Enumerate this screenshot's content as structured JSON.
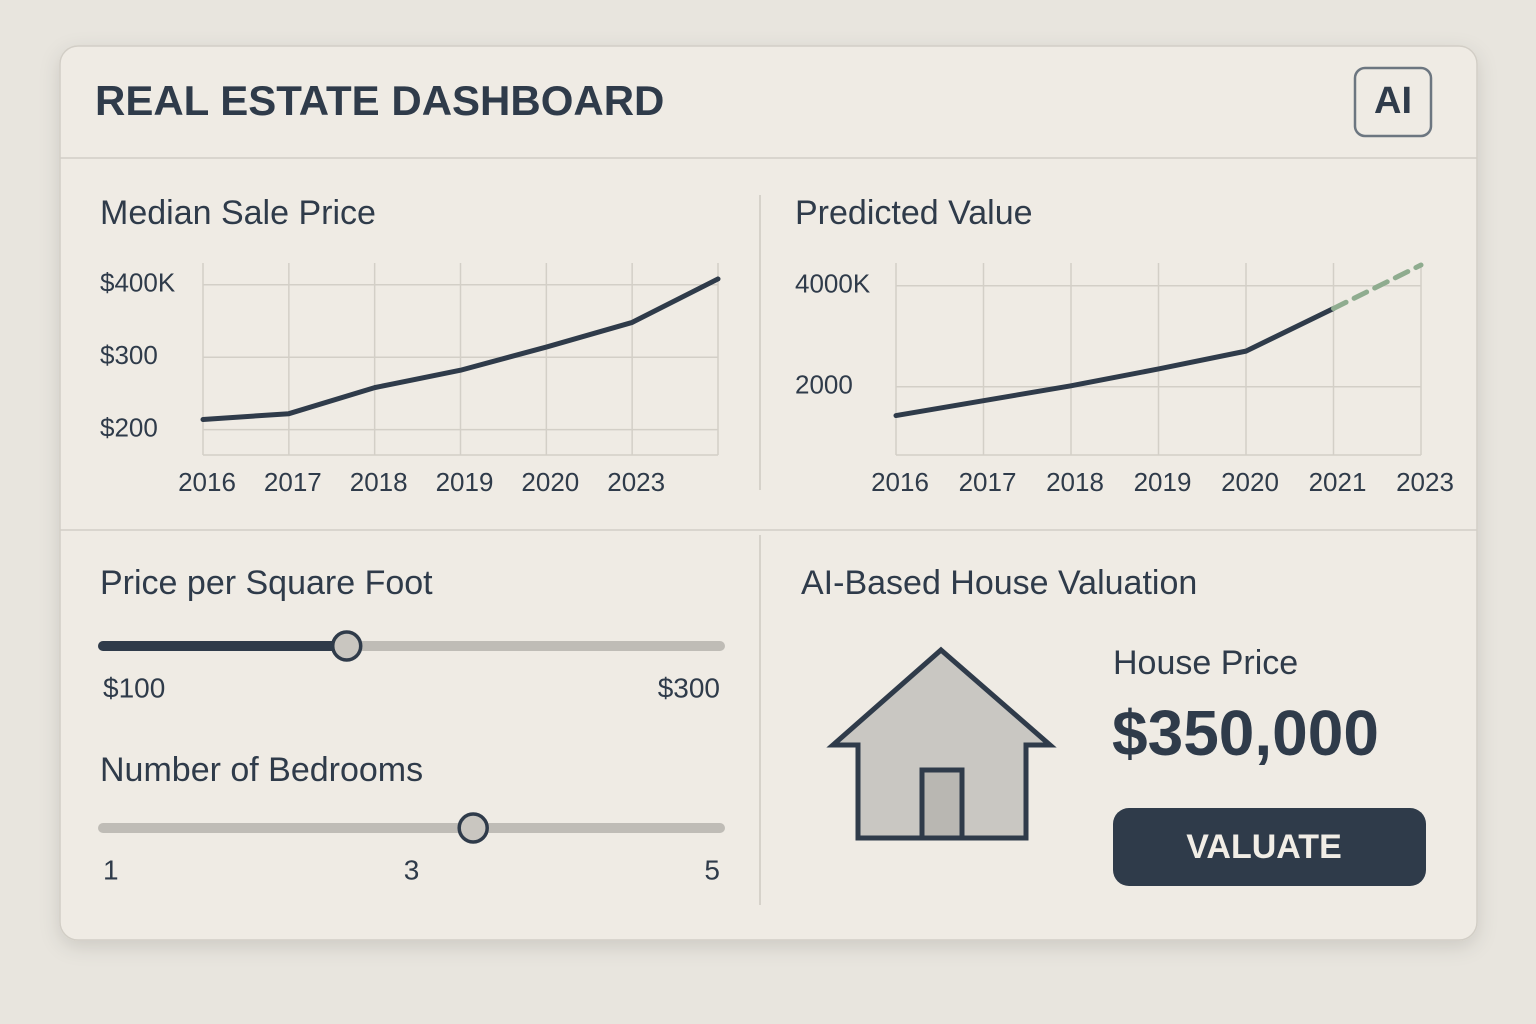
{
  "header": {
    "title": "REAL ESTATE DASHBOARD",
    "badge": "AI"
  },
  "median_chart": {
    "type": "line",
    "title": "Median Sale Price",
    "categories": [
      "2016",
      "2017",
      "2018",
      "2019",
      "2020",
      "2023",
      null
    ],
    "series": [
      {
        "color": "#2f3b4a",
        "values": [
          214,
          222,
          258,
          282,
          314,
          348,
          408
        ]
      }
    ],
    "ylim": [
      165,
      430
    ],
    "yticks": [
      {
        "value": 200,
        "label": "$200"
      },
      {
        "value": 300,
        "label": "$300"
      },
      {
        "value": 400,
        "label": "$400K"
      }
    ],
    "grid": true
  },
  "predicted_chart": {
    "type": "line",
    "title": "Predicted Value",
    "categories": [
      "2016",
      "2017",
      "2018",
      "2019",
      "2020",
      "2021",
      "2023"
    ],
    "series": [
      {
        "color": "#2f3b4a",
        "values": [
          1431,
          1725,
          2020,
          2353,
          2706,
          3549,
          null
        ]
      },
      {
        "color": "#8fac8f",
        "dashed": true,
        "values": [
          null,
          null,
          null,
          null,
          null,
          3549,
          4410
        ]
      }
    ],
    "ylim": [
      650,
      4450
    ],
    "yticks": [
      2000,
      {
        "value": 4000,
        "label": "4000K"
      }
    ],
    "grid": true
  },
  "price_slider": {
    "title": "Price per Square Foot",
    "value": 179,
    "ticks": [
      {
        "value": 100,
        "label": "$100"
      },
      {
        "value": 300,
        "label": "$300"
      }
    ]
  },
  "bedroom_slider": {
    "title": "Number of Bedrooms",
    "value": 3.4,
    "ticks": [
      1,
      3,
      5
    ]
  },
  "valuation": {
    "title": "AI-Based House Valuation",
    "label": "House Price",
    "price": "$350,000",
    "button": "VALUATE"
  }
}
